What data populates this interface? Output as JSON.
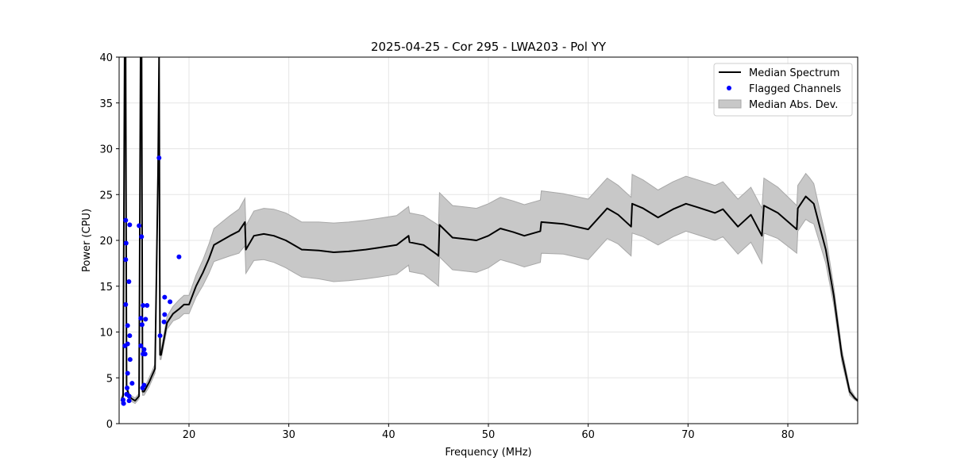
{
  "chart_data": {
    "type": "line",
    "title": "2025-04-25 - Cor 295 - LWA203 - Pol YY",
    "xlabel": "Frequency (MHz)",
    "ylabel": "Power (CPU)",
    "xlim": [
      13,
      87
    ],
    "ylim": [
      0,
      40
    ],
    "xticks": [
      20,
      30,
      40,
      50,
      60,
      70,
      80
    ],
    "yticks": [
      0,
      5,
      10,
      15,
      20,
      25,
      30,
      35,
      40
    ],
    "grid": true,
    "legend_position": "top-right",
    "legend": [
      "Median Spectrum",
      "Flagged Channels",
      "Median Abs. Dev."
    ],
    "colors": {
      "median": "#000000",
      "flagged": "#0000ff",
      "mad": "#c8c8c8"
    },
    "median_spectrum": {
      "freq": [
        13.2,
        13.4,
        13.55,
        13.65,
        13.75,
        14.0,
        14.3,
        14.6,
        15.0,
        15.15,
        15.25,
        15.35,
        15.5,
        16.0,
        16.6,
        16.9,
        17.0,
        17.1,
        17.2,
        17.8,
        18.4,
        19.0,
        19.5,
        20.0,
        20.7,
        21.4,
        22.0,
        22.5,
        23.3,
        24.1,
        25.0,
        25.6,
        25.7,
        26.5,
        27.5,
        28.5,
        29.7,
        30.5,
        31.3,
        33.0,
        34.5,
        36.0,
        37.7,
        39.0,
        40.8,
        42.0,
        42.1,
        43.5,
        44.8,
        45.0,
        45.1,
        46.4,
        48.0,
        48.8,
        50.0,
        51.2,
        52.5,
        53.6,
        55.2,
        55.3,
        57.5,
        60.0,
        61.9,
        63.0,
        64.3,
        64.4,
        65.5,
        67.0,
        68.5,
        69.8,
        71.0,
        72.7,
        73.5,
        75.0,
        76.3,
        77.4,
        77.6,
        79.0,
        80.9,
        81.0,
        81.8,
        82.2,
        82.6,
        83.2,
        83.8,
        84.6,
        85.4,
        86.2,
        86.7,
        87.0
      ],
      "power": [
        2.5,
        3.0,
        40,
        40,
        4.0,
        3.0,
        2.7,
        2.5,
        3.0,
        40,
        40,
        3.5,
        3.5,
        4.5,
        6.0,
        27.5,
        40,
        7.5,
        7.5,
        11.0,
        12.0,
        12.5,
        13.0,
        13.0,
        15.0,
        16.5,
        18.0,
        19.5,
        20.0,
        20.5,
        21.0,
        22.0,
        19.0,
        20.5,
        20.7,
        20.5,
        20.0,
        19.5,
        19.0,
        18.9,
        18.7,
        18.8,
        19.0,
        19.2,
        19.5,
        20.5,
        19.8,
        19.5,
        18.5,
        18.3,
        21.7,
        20.3,
        20.1,
        20.0,
        20.5,
        21.3,
        20.9,
        20.5,
        21.0,
        22.0,
        21.8,
        21.2,
        23.5,
        22.8,
        21.5,
        24.0,
        23.5,
        22.5,
        23.4,
        24.0,
        23.6,
        23.0,
        23.4,
        21.5,
        22.8,
        20.5,
        23.8,
        23.0,
        21.2,
        23.5,
        24.8,
        24.4,
        24.0,
        21.5,
        19.0,
        14.0,
        7.5,
        3.5,
        2.8,
        2.5
      ],
      "mad": [
        0.3,
        0.4,
        0.5,
        0.5,
        0.4,
        0.3,
        0.3,
        0.3,
        0.3,
        0.5,
        0.5,
        0.4,
        0.4,
        0.5,
        0.5,
        0.5,
        0.5,
        0.5,
        0.5,
        0.7,
        0.8,
        1.0,
        1.0,
        1.0,
        1.2,
        1.4,
        1.6,
        1.8,
        2.0,
        2.2,
        2.4,
        2.6,
        2.6,
        2.7,
        2.8,
        2.9,
        3.0,
        3.0,
        3.0,
        3.1,
        3.2,
        3.2,
        3.2,
        3.2,
        3.2,
        3.2,
        3.2,
        3.2,
        3.3,
        3.3,
        3.5,
        3.5,
        3.5,
        3.5,
        3.5,
        3.4,
        3.4,
        3.4,
        3.4,
        3.4,
        3.3,
        3.3,
        3.3,
        3.2,
        3.2,
        3.2,
        3.1,
        3.0,
        3.0,
        3.0,
        3.0,
        3.0,
        3.0,
        3.0,
        3.0,
        3.0,
        3.0,
        2.8,
        2.6,
        2.5,
        2.5,
        2.4,
        2.2,
        1.8,
        1.5,
        1.0,
        0.7,
        0.4,
        0.2,
        0.1
      ]
    },
    "flagged_channels": {
      "freq": [
        13.66,
        14.06,
        13.7,
        13.66,
        13.98,
        13.66,
        13.85,
        14.06,
        13.58,
        13.85,
        14.1,
        13.85,
        14.3,
        13.8,
        13.74,
        14.0,
        13.4,
        13.45,
        14.0,
        15.0,
        15.25,
        15.17,
        15.4,
        15.8,
        15.3,
        15.65,
        15.17,
        15.5,
        15.4,
        15.6,
        15.5,
        15.35,
        17.0,
        17.1,
        17.56,
        17.5,
        17.56,
        18.1,
        19.0
      ],
      "power": [
        22.2,
        21.7,
        19.7,
        17.9,
        15.5,
        13.0,
        10.7,
        9.6,
        8.5,
        8.7,
        7.0,
        5.5,
        4.4,
        3.9,
        3.2,
        3.0,
        2.6,
        2.2,
        2.5,
        21.6,
        20.4,
        11.5,
        12.9,
        12.9,
        10.8,
        11.4,
        8.5,
        8.1,
        7.6,
        7.6,
        4.2,
        3.9,
        29.0,
        9.6,
        13.8,
        11.1,
        11.9,
        13.3,
        18.2
      ]
    }
  }
}
